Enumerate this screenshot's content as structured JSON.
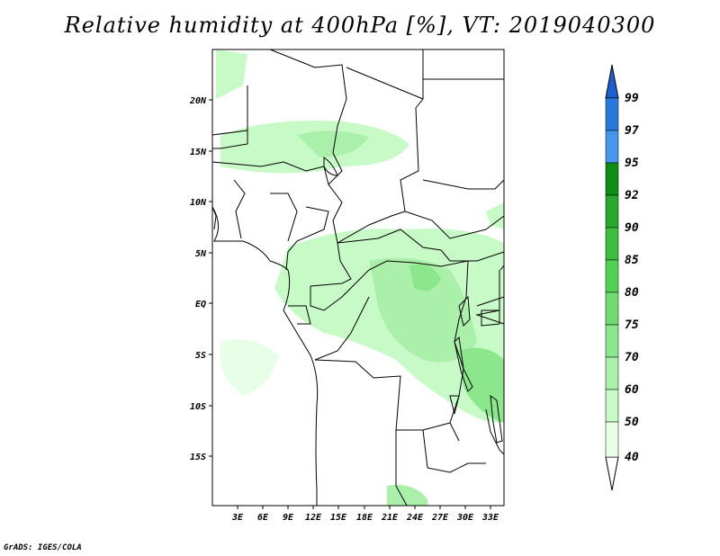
{
  "title": "Relative humidity at 400hPa [%], VT: 2019040300",
  "credit": "GrADS: IGES/COLA",
  "map": {
    "lat_labels": [
      "20N",
      "15N",
      "10N",
      "5N",
      "EQ",
      "5S",
      "10S",
      "15S"
    ],
    "lon_labels": [
      "3E",
      "6E",
      "9E",
      "12E",
      "15E",
      "18E",
      "21E",
      "24E",
      "27E",
      "30E",
      "33E"
    ]
  },
  "colorbar": {
    "levels": [
      "99",
      "97",
      "95",
      "92",
      "90",
      "85",
      "80",
      "75",
      "70",
      "60",
      "50",
      "40"
    ],
    "colors": [
      "#1e5fd0",
      "#2878dc",
      "#4696eb",
      "#0f8c14",
      "#28a82d",
      "#3cbe3c",
      "#50d250",
      "#6edc6e",
      "#8ce68c",
      "#aaf0aa",
      "#c8fac8",
      "#e6ffe6"
    ]
  }
}
